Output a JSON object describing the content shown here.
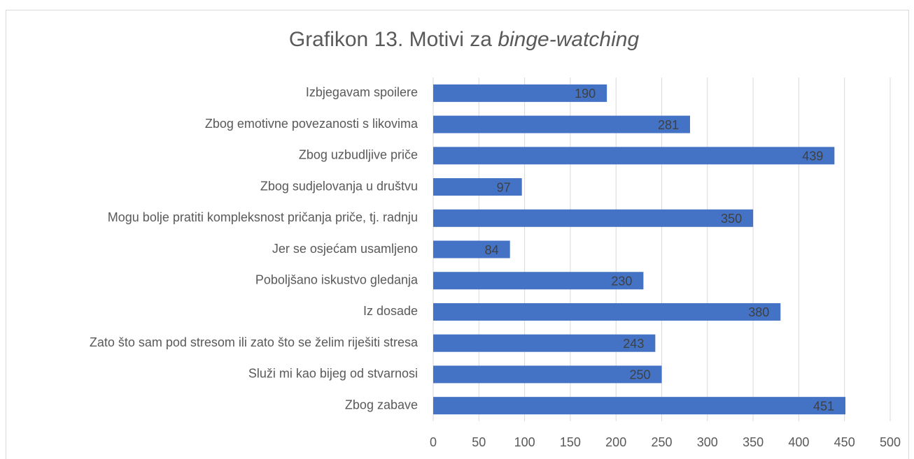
{
  "chart_data": {
    "type": "bar",
    "orientation": "horizontal",
    "title": "Grafikon 13. Motivi za",
    "title_emphasis": "binge-watching",
    "categories": [
      "Izbjegavam spoilere",
      "Zbog emotivne povezanosti s likovima",
      "Zbog uzbudljive priče",
      "Zbog sudjelovanja u društvu",
      "Mogu bolje pratiti kompleksnost pričanja priče, tj. radnju",
      "Jer se osjećam usamljeno",
      "Poboljšano iskustvo gledanja ",
      "Iz dosade",
      "Zato što sam pod stresom ili zato što se želim riješiti stresa",
      "Služi mi kao bijeg od stvarnosi",
      "Zbog zabave"
    ],
    "values": [
      190,
      281,
      439,
      97,
      350,
      84,
      230,
      380,
      243,
      250,
      451
    ],
    "color": "#4472c4",
    "xlim": [
      0,
      500
    ],
    "xticks": [
      0,
      50,
      100,
      150,
      200,
      250,
      300,
      350,
      400,
      450,
      500
    ],
    "grid": true,
    "data_labels": true
  }
}
